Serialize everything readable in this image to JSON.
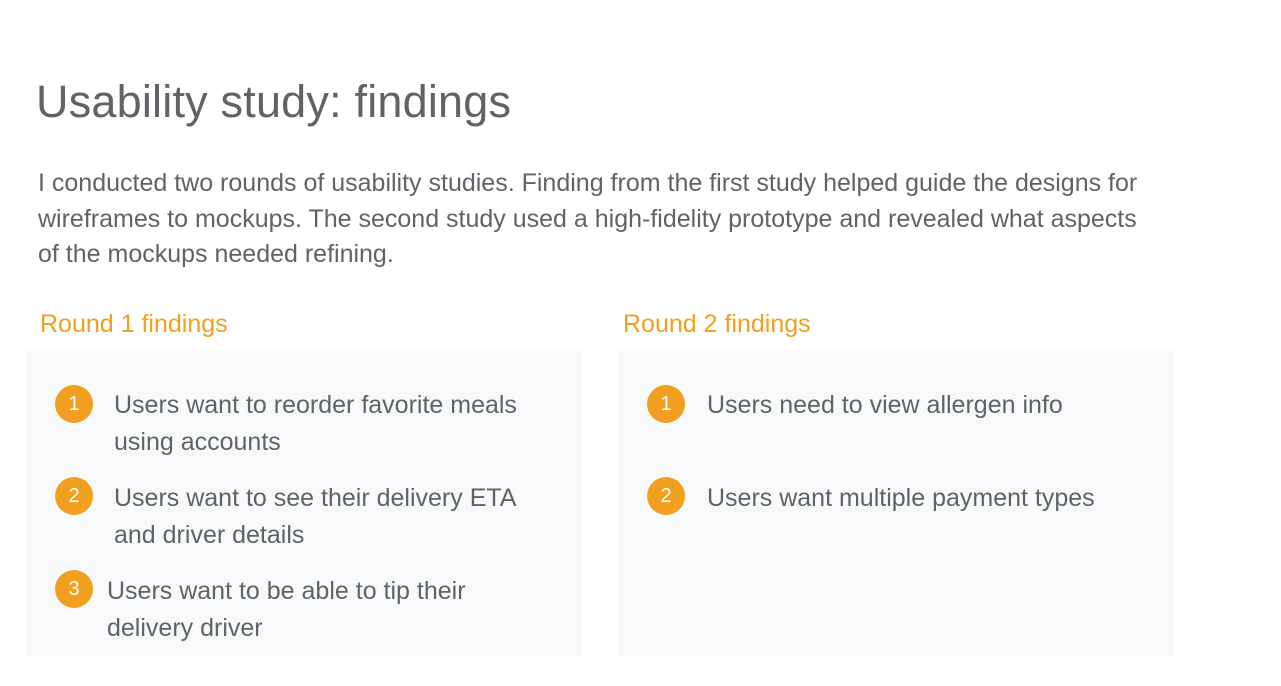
{
  "title": "Usability study: findings",
  "intro": "I conducted two rounds of usability studies. Finding from the first study helped guide the designs for wireframes to mockups. The second study used a high-fidelity prototype and revealed what aspects of the mockups needed refining.",
  "accent_color": "#f29f1f",
  "round1": {
    "heading": "Round 1 findings",
    "findings": [
      {
        "number": "1",
        "lines": [
          "Users want to reorder favorite meals",
          "using accounts"
        ]
      },
      {
        "number": "2",
        "lines": [
          "Users want to see their delivery ETA",
          "and driver details"
        ]
      },
      {
        "number": "3",
        "lines": [
          "Users want to be able to tip their",
          "delivery driver"
        ]
      }
    ]
  },
  "round2": {
    "heading": "Round 2 findings",
    "findings": [
      {
        "number": "1",
        "lines": [
          "Users need to view allergen info"
        ]
      },
      {
        "number": "2",
        "lines": [
          "Users want multiple payment types"
        ]
      }
    ]
  }
}
